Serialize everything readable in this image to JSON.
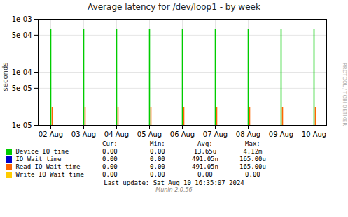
{
  "chart_data": {
    "type": "bar",
    "title": "Average latency for /dev/loop1 - by week",
    "ylabel": "seconds",
    "categories": [
      "02 Aug",
      "03 Aug",
      "04 Aug",
      "05 Aug",
      "06 Aug",
      "07 Aug",
      "08 Aug",
      "09 Aug",
      "10 Aug"
    ],
    "series": [
      {
        "name": "Device IO time",
        "color": "#00cc00",
        "values": [
          0.00065,
          0.00065,
          0.00065,
          0.00065,
          0.00065,
          0.00065,
          0.00065,
          0.00065,
          0.00065
        ],
        "stats": [
          "0.00",
          "0.00",
          "13.65u",
          "4.12m"
        ]
      },
      {
        "name": "IO Wait time",
        "color": "#0000cc",
        "values": [
          null,
          null,
          null,
          null,
          null,
          null,
          null,
          null,
          null
        ],
        "stats": [
          "0.00",
          "0.00",
          "491.05n",
          "165.00u"
        ]
      },
      {
        "name": "Read IO Wait time",
        "color": "#ff6600",
        "values": [
          2.2e-05,
          2.2e-05,
          2.2e-05,
          2.2e-05,
          2.2e-05,
          2.2e-05,
          2.2e-05,
          2.2e-05,
          2.2e-05
        ],
        "stats": [
          "0.00",
          "0.00",
          "491.05n",
          "165.00u"
        ]
      },
      {
        "name": "Write IO Wait time",
        "color": "#ffcc00",
        "values": [
          null,
          null,
          null,
          null,
          null,
          null,
          null,
          null,
          null
        ],
        "stats": [
          "0.00",
          "0.00",
          "0.00",
          "0.00"
        ]
      }
    ],
    "stats_headers": [
      "Cur:",
      "Min:",
      "Avg:",
      "Max:"
    ],
    "ylim": [
      1e-05,
      0.001
    ],
    "yticks": [
      {
        "value": 1e-05,
        "label": "1e-05"
      },
      {
        "value": 5e-05,
        "label": "5e-05"
      },
      {
        "value": 0.0001,
        "label": "1e-04"
      },
      {
        "value": 0.0005,
        "label": "5e-04"
      },
      {
        "value": 0.001,
        "label": "1e-03"
      }
    ],
    "log": "y",
    "grid": true,
    "annotations": [
      "Last update: Sat Aug 10 16:35:07 2024",
      "Munin 2.0.56",
      "RRDTOOL / TOBI OETIKER"
    ]
  }
}
